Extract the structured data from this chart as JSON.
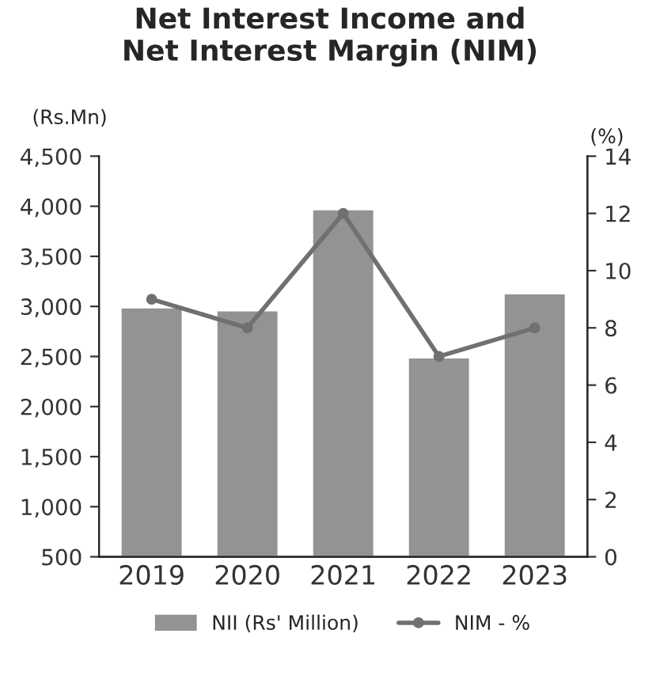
{
  "chart_data": {
    "type": "bar",
    "title": "Net Interest Income and\nNet Interest Margin (NIM)",
    "ylabel": "(Rs.Mn)",
    "y2label": "(%)",
    "categories": [
      "2019",
      "2020",
      "2021",
      "2022",
      "2023"
    ],
    "series": [
      {
        "name": "NII (Rs' Million)",
        "color": "#939393",
        "values": [
          2990,
          2960,
          3970,
          2490,
          3130
        ]
      },
      {
        "name": "NIM - %",
        "type": "line",
        "axis": "y2",
        "color": "#707070",
        "marker": "circle",
        "values": [
          9,
          8,
          12,
          7,
          8
        ]
      }
    ],
    "ylim": [
      500,
      4500
    ],
    "yticks": [
      {
        "value": 500,
        "label": "500"
      },
      {
        "value": 1000,
        "label": "1,000"
      },
      {
        "value": 1500,
        "label": "1,500"
      },
      {
        "value": 2000,
        "label": "2,000"
      },
      {
        "value": 2500,
        "label": "2,500"
      },
      {
        "value": 3000,
        "label": "3,000"
      },
      {
        "value": 3500,
        "label": "3,500"
      },
      {
        "value": 4000,
        "label": "4,000"
      },
      {
        "value": 4500,
        "label": "4,500"
      }
    ],
    "y2lim": [
      0,
      14
    ],
    "y2ticks": [
      0,
      2,
      4,
      6,
      8,
      10,
      12,
      14
    ],
    "grid": false,
    "legend": "bottom"
  }
}
